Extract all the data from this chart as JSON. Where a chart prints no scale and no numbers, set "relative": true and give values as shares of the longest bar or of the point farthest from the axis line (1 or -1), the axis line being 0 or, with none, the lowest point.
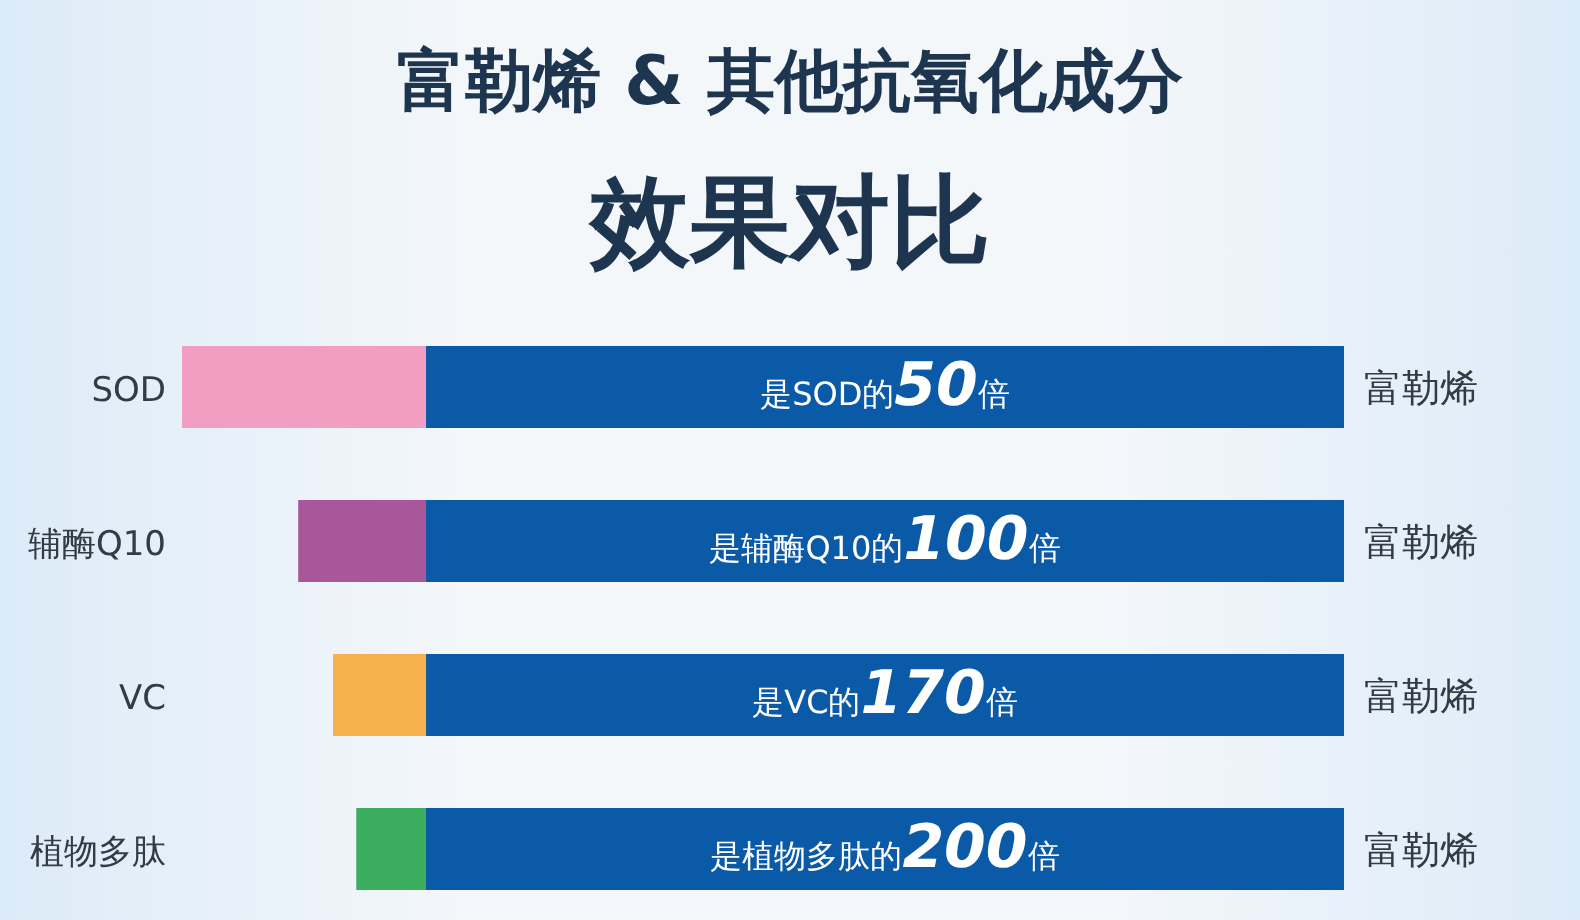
{
  "chart_data": {
    "type": "bar",
    "orientation": "horizontal",
    "stacked": true,
    "relative": true,
    "title": "富勒烯 & 其他抗氧化成分",
    "subtitle": "效果对比",
    "categories": [
      "SOD",
      "辅酶Q10",
      "VC",
      "植物多肽"
    ],
    "series": [
      {
        "name": "富勒烯",
        "color": "#0a5aa8",
        "values": [
          0.79,
          0.79,
          0.79,
          0.79
        ]
      },
      {
        "colors": [
          "#f19ec2",
          "#a9579b",
          "#f6b04e",
          "#3aad5f"
        ],
        "values": [
          0.21,
          0.11,
          0.08,
          0.06
        ]
      }
    ],
    "annotations": [
      "是SOD的50倍",
      "是辅酶Q10的100倍",
      "是VC的170倍",
      "是植物多肽的200倍"
    ]
  }
}
